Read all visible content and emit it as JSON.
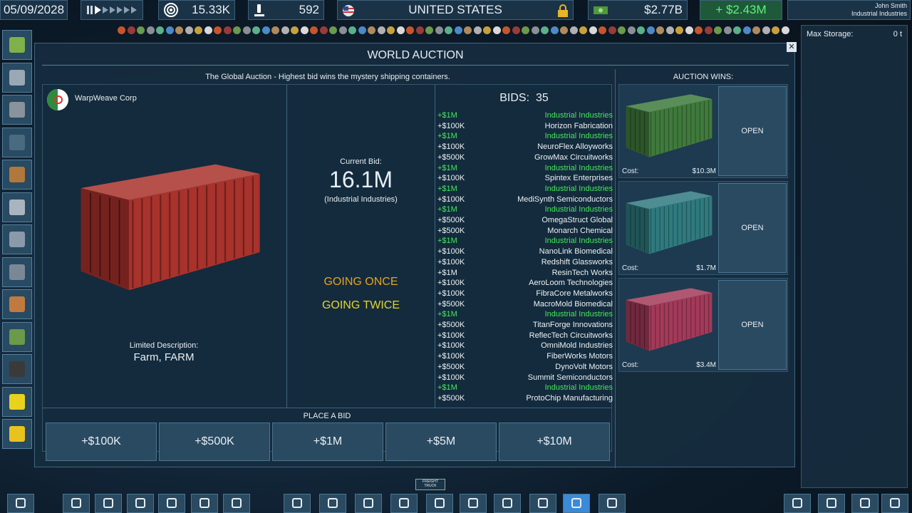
{
  "top_bar": {
    "date": "05/09/2028",
    "influence": "15.33K",
    "research": "592",
    "country": "UNITED STATES",
    "money": "$2.77B",
    "income": "+ $2.43M",
    "player": "John Smith",
    "company": "Industrial Industries"
  },
  "storage": {
    "label": "Max Storage:",
    "value": "0 t"
  },
  "auction": {
    "title": "WORLD AUCTION",
    "subtitle": "The Global Auction - Highest bid wins the mystery shipping containers.",
    "seller": "WarpWeave Corp",
    "description_label": "Limited Description:",
    "description": "Farm, FARM",
    "current_bid_label": "Current Bid:",
    "current_bid": "16.1M",
    "current_bidder": "(Industrial Industries)",
    "going_once": "GOING ONCE",
    "going_twice": "GOING TWICE",
    "bids_label": "BIDS:",
    "bids_count": 35,
    "bids": [
      [
        "+$1M",
        "Industrial Industries"
      ],
      [
        "+$100K",
        "Horizon Fabrication"
      ],
      [
        "+$1M",
        "Industrial Industries"
      ],
      [
        "+$100K",
        "NeuroFlex Alloyworks"
      ],
      [
        "+$500K",
        "GrowMax Circuitworks"
      ],
      [
        "+$1M",
        "Industrial Industries"
      ],
      [
        "+$100K",
        "Spintex Enterprises"
      ],
      [
        "+$1M",
        "Industrial Industries"
      ],
      [
        "+$100K",
        "MediSynth Semiconductors"
      ],
      [
        "+$1M",
        "Industrial Industries"
      ],
      [
        "+$500K",
        "OmegaStruct Global"
      ],
      [
        "+$500K",
        "Monarch Chemical"
      ],
      [
        "+$1M",
        "Industrial Industries"
      ],
      [
        "+$100K",
        "NanoLink Biomedical"
      ],
      [
        "+$100K",
        "Redshift Glassworks"
      ],
      [
        "+$1M",
        "ResinTech Works"
      ],
      [
        "+$100K",
        "AeroLoom Technologies"
      ],
      [
        "+$100K",
        "FibraCore Metalworks"
      ],
      [
        "+$500K",
        "MacroMold Biomedical"
      ],
      [
        "+$1M",
        "Industrial Industries"
      ],
      [
        "+$500K",
        "TitanForge Innovations"
      ],
      [
        "+$100K",
        "ReflecTech Circuitworks"
      ],
      [
        "+$100K",
        "OmniMold Industries"
      ],
      [
        "+$100K",
        "FiberWorks Motors"
      ],
      [
        "+$500K",
        "DynoVolt Motors"
      ],
      [
        "+$100K",
        "Summit Semiconductors"
      ],
      [
        "+$1M",
        "Industrial Industries"
      ],
      [
        "+$500K",
        "ProtoChip Manufacturing"
      ]
    ],
    "place_bid_label": "PLACE A BID",
    "bid_buttons": [
      "+$100K",
      "+$500K",
      "+$1M",
      "+$5M",
      "+$10M"
    ],
    "wins_label": "AUCTION WINS:",
    "wins": [
      {
        "cost_label": "Cost:",
        "cost": "$10.3M",
        "button": "OPEN",
        "color": "#3f7a3c"
      },
      {
        "cost_label": "Cost:",
        "cost": "$1.7M",
        "button": "OPEN",
        "color": "#2f7a7e"
      },
      {
        "cost_label": "Cost:",
        "cost": "$3.4M",
        "button": "OPEN",
        "color": "#a33a5a"
      }
    ],
    "main_color": "#a8322c"
  },
  "map_label": "FREIGHT TRUCK"
}
